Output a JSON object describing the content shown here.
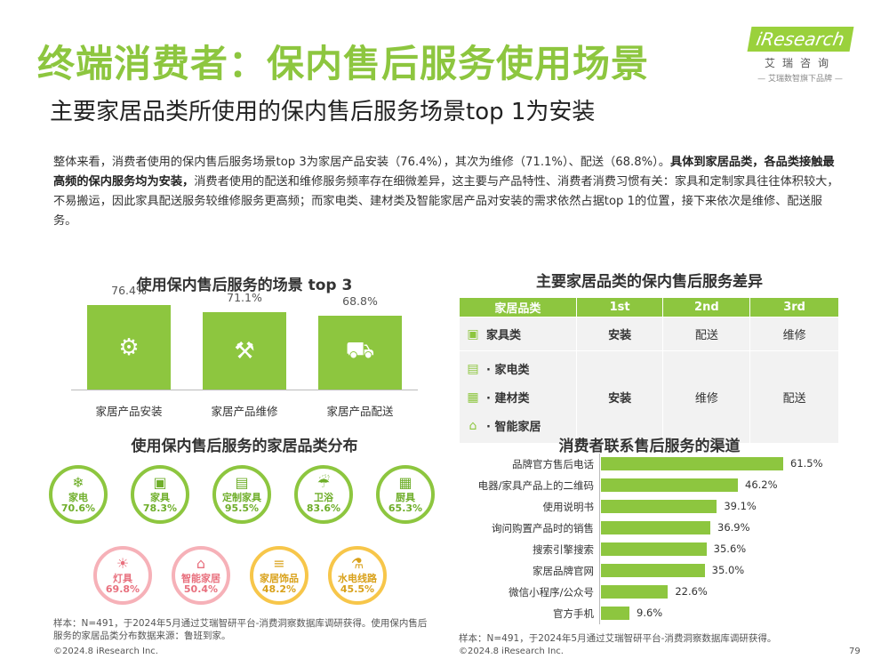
{
  "header": {
    "title": "终端消费者：保内售后服务使用场景",
    "subtitle": "主要家居品类所使用的保内售后服务场景top 1为安装",
    "logo_text": "iResearch",
    "logo_cn": "艾瑞咨询",
    "logo_tag": "— 艾瑞数智旗下品牌 —"
  },
  "intro": {
    "p1": "整体来看，消费者使用的保内售后服务场景top  3为家居产品安装（76.4%），其次为维修（71.1%）、配送（68.8%）。",
    "p2": "具体到家居品类，各品类接触最高频的保内服务均为安装，",
    "p3": "消费者使用的配送和维修服务频率存在细微差异，这主要与产品特性、消费者消费习惯有关：家具和定制家具往往体积较大，不易搬运，因此家具配送服务较维修服务更高频；而家电类、建材类及智能家居产品对安装的需求依然占据top 1的位置，接下来依次是维修、配送服务。"
  },
  "chart_data": [
    {
      "type": "bar",
      "title": "使用保内售后服务的场景 top 3",
      "categories": [
        "家居产品安装",
        "家居产品维修",
        "家居产品配送"
      ],
      "values": [
        76.4,
        71.1,
        68.8
      ],
      "value_labels": [
        "76.4%",
        "71.1%",
        "68.8%"
      ],
      "icons": [
        "gears-icon",
        "wrench-icon",
        "truck-icon"
      ]
    },
    {
      "type": "bar",
      "orientation": "horizontal",
      "title": "消费者联系售后服务的渠道",
      "categories": [
        "品牌官方售后电话",
        "电器/家具产品上的二维码",
        "使用说明书",
        "询问购置产品时的销售",
        "搜索引擎搜索",
        "家居品牌官网",
        "微信小程序/公众号",
        "官方手机"
      ],
      "values": [
        61.5,
        46.2,
        39.1,
        36.9,
        35.6,
        35.0,
        22.6,
        9.6
      ],
      "value_labels": [
        "61.5%",
        "46.2%",
        "39.1%",
        "36.9%",
        "35.6%",
        "35.0%",
        "22.6%",
        "9.6%"
      ]
    }
  ],
  "distribution": {
    "title": "使用保内售后服务的家居品类分布",
    "row1": [
      {
        "name": "家电",
        "value": "70.6%",
        "icon": "air-conditioner-icon",
        "color": "green"
      },
      {
        "name": "家具",
        "value": "78.3%",
        "icon": "sofa-icon",
        "color": "green"
      },
      {
        "name": "定制家具",
        "value": "95.5%",
        "icon": "cabinet-icon",
        "color": "green"
      },
      {
        "name": "卫浴",
        "value": "83.6%",
        "icon": "shower-icon",
        "color": "green"
      },
      {
        "name": "厨具",
        "value": "65.3%",
        "icon": "oven-icon",
        "color": "green"
      }
    ],
    "row2": [
      {
        "name": "灯具",
        "value": "69.8%",
        "icon": "lamp-icon",
        "color": "pink"
      },
      {
        "name": "智能家居",
        "value": "50.4%",
        "icon": "smart-home-icon",
        "color": "pink"
      },
      {
        "name": "家居饰品",
        "value": "48.2%",
        "icon": "curtain-icon",
        "color": "gold"
      },
      {
        "name": "水电线路",
        "value": "45.5%",
        "icon": "faucet-icon",
        "color": "gold"
      }
    ]
  },
  "diff_table": {
    "title": "主要家居品类的保内售后服务差异",
    "headers": [
      "家居品类",
      "1st",
      "2nd",
      "3rd"
    ],
    "row_furniture": {
      "name": "家具类",
      "first": "安装",
      "second": "配送",
      "third": "维修"
    },
    "row_group": {
      "names": [
        "· 家电类",
        "· 建材类",
        "· 智能家居"
      ],
      "first": "安装",
      "second": "维修",
      "third": "配送"
    }
  },
  "notes": {
    "left": "样本：N=491，于2024年5月通过艾瑞智研平台-消费洞察数据库调研获得。使用保内售后服务的家居品类分布数据来源：鲁班到家。",
    "right": "样本：N=491，于2024年5月通过艾瑞智研平台-消费洞察数据库调研获得。",
    "copyright_left": "©2024.8 iResearch Inc.",
    "copyright_right": "©2024.8 iResearch Inc.",
    "page": "79"
  }
}
